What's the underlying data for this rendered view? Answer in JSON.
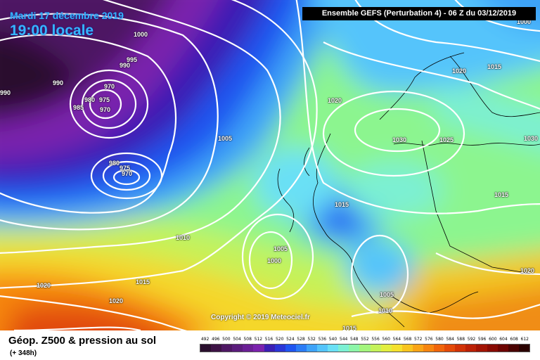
{
  "header": {
    "date": "Mardi 17 décembre 2019",
    "time": "19:00 locale",
    "run_info": "Ensemble GEFS  (Perturbation 4)  -  06 Z du 03/12/2019"
  },
  "map": {
    "copyright": "Copyright © 2019 Meteociel.fr",
    "isobar_labels": [
      "1000",
      "995",
      "990",
      "990",
      "970",
      "980",
      "975",
      "985",
      "970",
      "990",
      "980",
      "975",
      "970",
      "1005",
      "1010",
      "1005",
      "1000",
      "1020",
      "1020",
      "1015",
      "1015",
      "1020",
      "1030",
      "1025",
      "1020",
      "1015",
      "1015",
      "1030",
      "1000",
      "1020",
      "1005",
      "1010",
      "1015"
    ]
  },
  "footer": {
    "title": "Géop. Z500 & pression au sol",
    "forecast": "(+ 348h)"
  },
  "legend": {
    "values": [
      "492",
      "496",
      "500",
      "504",
      "508",
      "512",
      "516",
      "520",
      "524",
      "528",
      "532",
      "536",
      "540",
      "544",
      "548",
      "552",
      "556",
      "560",
      "564",
      "568",
      "572",
      "576",
      "580",
      "584",
      "588",
      "592",
      "596",
      "600",
      "604",
      "608",
      "612"
    ],
    "colors": [
      "#2a0f2e",
      "#3d1245",
      "#4e1763",
      "#5b1c7c",
      "#6a1f95",
      "#7a22ad",
      "#3a1fb4",
      "#2a36d6",
      "#1f55f0",
      "#2b7cf5",
      "#3ea3f8",
      "#54c4fb",
      "#6ae0f5",
      "#7cf0d3",
      "#8cf5a8",
      "#a3f57d",
      "#c4f25a",
      "#e2ee3f",
      "#f5e12e",
      "#f8c41f",
      "#f9a416",
      "#f6850f",
      "#f0650b",
      "#e44a08",
      "#d13206",
      "#bb2005",
      "#a21303",
      "#880a02",
      "#6d0401",
      "#4a0200",
      "#2a0100"
    ]
  }
}
